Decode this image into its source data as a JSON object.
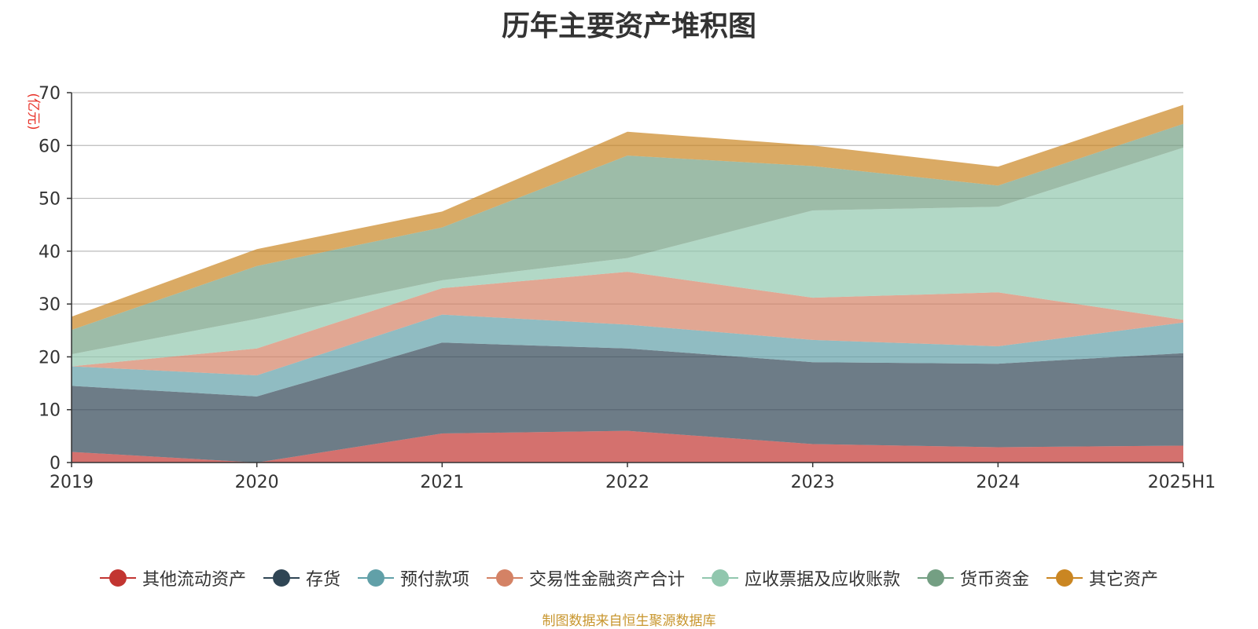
{
  "chart_data": {
    "type": "area",
    "stacked": true,
    "title": "历年主要资产堆积图",
    "ylabel": "(亿元)",
    "xlabel": "",
    "categories": [
      "2019",
      "2020",
      "2021",
      "2022",
      "2023",
      "2024",
      "2025H1"
    ],
    "ylim": [
      0,
      70
    ],
    "yticks": [
      0,
      10,
      20,
      30,
      40,
      50,
      60,
      70
    ],
    "grid": true,
    "legend_position": "bottom",
    "series": [
      {
        "name": "其他流动资产",
        "color": "#c23531",
        "values": [
          2.0,
          0.0,
          5.5,
          6.0,
          3.5,
          2.9,
          3.2
        ]
      },
      {
        "name": "存货",
        "color": "#2f4554",
        "values": [
          12.5,
          12.5,
          17.2,
          15.6,
          15.5,
          15.8,
          17.5
        ]
      },
      {
        "name": "预付款项",
        "color": "#61a0a8",
        "values": [
          3.7,
          4.0,
          5.3,
          4.5,
          4.2,
          3.3,
          5.8
        ]
      },
      {
        "name": "交易性金融资产合计",
        "color": "#d48265",
        "values": [
          0.0,
          5.1,
          5.0,
          10.0,
          8.0,
          10.2,
          0.5
        ]
      },
      {
        "name": "应收票据及应收账款",
        "color": "#91c7ae",
        "values": [
          2.3,
          5.6,
          1.5,
          2.6,
          16.5,
          16.2,
          32.6
        ]
      },
      {
        "name": "货币资金",
        "color": "#749f83",
        "values": [
          4.6,
          10.0,
          10.0,
          19.4,
          8.4,
          4.0,
          4.5
        ]
      },
      {
        "name": "其它资产",
        "color": "#ca8622",
        "values": [
          2.5,
          3.2,
          3.0,
          4.5,
          3.9,
          3.6,
          3.6
        ]
      }
    ]
  },
  "source_note": "制图数据来自恒生聚源数据库"
}
